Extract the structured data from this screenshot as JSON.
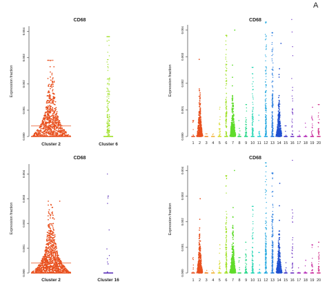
{
  "figure_label": "A",
  "chart_data": [
    {
      "type": "scatter",
      "title": "CD68",
      "xlabel": "",
      "ylabel": "Expression fraction",
      "categories": [
        "Cluster 2",
        "Cluster 6"
      ],
      "ylim": [
        0,
        0.0042
      ],
      "yticks": [
        0,
        0.001,
        0.002,
        0.003,
        0.004
      ],
      "ytick_labels": [
        "0.000",
        "0.001",
        "0.002",
        "0.003",
        "0.004"
      ],
      "grid": false,
      "series": [
        {
          "category": "Cluster 2",
          "color": "#e8501e",
          "n": 700,
          "max": 0.0029,
          "shape": "violin",
          "mode": 0.0006,
          "spread": 0.0009
        },
        {
          "category": "Cluster 6",
          "color": "#9fe024",
          "n": 140,
          "max": 0.0038,
          "shape": "column",
          "mode": 0.0006,
          "spread": 0.0008
        }
      ]
    },
    {
      "type": "scatter",
      "title": "CD68",
      "xlabel": "",
      "ylabel": "Expression fraction",
      "categories": [
        "1",
        "2",
        "3",
        "4",
        "5",
        "6",
        "7",
        "8",
        "9",
        "10",
        "11",
        "12",
        "13",
        "14",
        "15",
        "16",
        "17",
        "18",
        "19",
        "20"
      ],
      "ylim": [
        0,
        0.0042
      ],
      "yticks": [
        0,
        0.001,
        0.002,
        0.003,
        0.004
      ],
      "ytick_labels": [
        "0.000",
        "0.001",
        "0.002",
        "0.003",
        "0.004"
      ],
      "grid": false,
      "series": [
        {
          "category": "1",
          "color": "#e8501e",
          "n": 8,
          "max": 0.0006,
          "shape": "column"
        },
        {
          "category": "2",
          "color": "#e8501e",
          "n": 320,
          "max": 0.0029,
          "shape": "violin"
        },
        {
          "category": "3",
          "color": "#f08a2a",
          "n": 2,
          "max": 0.0001,
          "shape": "column"
        },
        {
          "category": "4",
          "color": "#f2b233",
          "n": 2,
          "max": 0.0001,
          "shape": "column"
        },
        {
          "category": "5",
          "color": "#d6d92a",
          "n": 20,
          "max": 0.0011,
          "shape": "column"
        },
        {
          "category": "6",
          "color": "#9fe024",
          "n": 120,
          "max": 0.0038,
          "shape": "column"
        },
        {
          "category": "7",
          "color": "#5fdc2a",
          "n": 320,
          "max": 0.004,
          "shape": "violin"
        },
        {
          "category": "8",
          "color": "#2ed65a",
          "n": 6,
          "max": 0.0006,
          "shape": "column"
        },
        {
          "category": "9",
          "color": "#2ad88c",
          "n": 40,
          "max": 0.0012,
          "shape": "column"
        },
        {
          "category": "10",
          "color": "#27d6b4",
          "n": 80,
          "max": 0.0026,
          "shape": "column"
        },
        {
          "category": "11",
          "color": "#26cfd6",
          "n": 10,
          "max": 0.0008,
          "shape": "column"
        },
        {
          "category": "12",
          "color": "#26a9e0",
          "n": 140,
          "max": 0.0043,
          "shape": "column"
        },
        {
          "category": "13",
          "color": "#2a7fe0",
          "n": 160,
          "max": 0.0039,
          "shape": "column"
        },
        {
          "category": "14",
          "color": "#1f4fcf",
          "n": 260,
          "max": 0.0035,
          "shape": "violin"
        },
        {
          "category": "15",
          "color": "#3d37c8",
          "n": 6,
          "max": 0.0004,
          "shape": "column"
        },
        {
          "category": "16",
          "color": "#6a2fc2",
          "n": 30,
          "max": 0.0044,
          "shape": "column"
        },
        {
          "category": "17",
          "color": "#9a2bc0",
          "n": 3,
          "max": 0.0002,
          "shape": "column"
        },
        {
          "category": "18",
          "color": "#b52db8",
          "n": 6,
          "max": 0.0005,
          "shape": "column"
        },
        {
          "category": "19",
          "color": "#c92ea2",
          "n": 20,
          "max": 0.0011,
          "shape": "column"
        },
        {
          "category": "20",
          "color": "#d2318a",
          "n": 30,
          "max": 0.0012,
          "shape": "column"
        }
      ]
    },
    {
      "type": "scatter",
      "title": "CD68",
      "xlabel": "",
      "ylabel": "Expression fraction",
      "categories": [
        "Cluster 2",
        "Cluster 16"
      ],
      "ylim": [
        0,
        0.0044
      ],
      "yticks": [
        0,
        0.001,
        0.002,
        0.003,
        0.004
      ],
      "ytick_labels": [
        "0.000",
        "0.001",
        "0.002",
        "0.003",
        "0.004"
      ],
      "grid": false,
      "series": [
        {
          "category": "Cluster 2",
          "color": "#e8501e",
          "n": 900,
          "max": 0.0029,
          "shape": "violin",
          "mode": 0.0006,
          "spread": 0.0009
        },
        {
          "category": "Cluster 16",
          "color": "#5a2fb8",
          "n": 14,
          "max": 0.004,
          "shape": "column",
          "mode": 0.0012,
          "spread": 0.001
        }
      ]
    },
    {
      "type": "scatter",
      "title": "CD68",
      "xlabel": "",
      "ylabel": "Expression fraction",
      "categories": [
        "1",
        "2",
        "3",
        "4",
        "5",
        "6",
        "7",
        "8",
        "9",
        "10",
        "11",
        "12",
        "13",
        "14",
        "15",
        "16",
        "17",
        "18",
        "19",
        "20"
      ],
      "ylim": [
        0,
        0.0042
      ],
      "yticks": [
        0,
        0.001,
        0.002,
        0.003,
        0.004
      ],
      "ytick_labels": [
        "0.000",
        "0.001",
        "0.002",
        "0.003",
        "0.004"
      ],
      "grid": false,
      "series": [
        {
          "category": "1",
          "color": "#e8501e",
          "n": 8,
          "max": 0.0006,
          "shape": "column"
        },
        {
          "category": "2",
          "color": "#e8501e",
          "n": 320,
          "max": 0.0029,
          "shape": "violin"
        },
        {
          "category": "3",
          "color": "#f08a2a",
          "n": 2,
          "max": 0.0001,
          "shape": "column"
        },
        {
          "category": "4",
          "color": "#f2b233",
          "n": 2,
          "max": 0.0001,
          "shape": "column"
        },
        {
          "category": "5",
          "color": "#d6d92a",
          "n": 20,
          "max": 0.0011,
          "shape": "column"
        },
        {
          "category": "6",
          "color": "#9fe024",
          "n": 120,
          "max": 0.0038,
          "shape": "column"
        },
        {
          "category": "7",
          "color": "#5fdc2a",
          "n": 320,
          "max": 0.004,
          "shape": "violin"
        },
        {
          "category": "8",
          "color": "#2ed65a",
          "n": 6,
          "max": 0.0006,
          "shape": "column"
        },
        {
          "category": "9",
          "color": "#2ad88c",
          "n": 40,
          "max": 0.0012,
          "shape": "column"
        },
        {
          "category": "10",
          "color": "#27d6b4",
          "n": 80,
          "max": 0.0026,
          "shape": "column"
        },
        {
          "category": "11",
          "color": "#26cfd6",
          "n": 10,
          "max": 0.0008,
          "shape": "column"
        },
        {
          "category": "12",
          "color": "#26a9e0",
          "n": 140,
          "max": 0.0043,
          "shape": "column"
        },
        {
          "category": "13",
          "color": "#2a7fe0",
          "n": 160,
          "max": 0.0039,
          "shape": "column"
        },
        {
          "category": "14",
          "color": "#1f4fcf",
          "n": 260,
          "max": 0.0035,
          "shape": "violin"
        },
        {
          "category": "15",
          "color": "#3d37c8",
          "n": 6,
          "max": 0.0004,
          "shape": "column"
        },
        {
          "category": "16",
          "color": "#6a2fc2",
          "n": 30,
          "max": 0.0044,
          "shape": "column"
        },
        {
          "category": "17",
          "color": "#9a2bc0",
          "n": 3,
          "max": 0.0002,
          "shape": "column"
        },
        {
          "category": "18",
          "color": "#b52db8",
          "n": 6,
          "max": 0.0005,
          "shape": "column"
        },
        {
          "category": "19",
          "color": "#c92ea2",
          "n": 20,
          "max": 0.0011,
          "shape": "column"
        },
        {
          "category": "20",
          "color": "#d2318a",
          "n": 30,
          "max": 0.0012,
          "shape": "column"
        }
      ]
    }
  ]
}
